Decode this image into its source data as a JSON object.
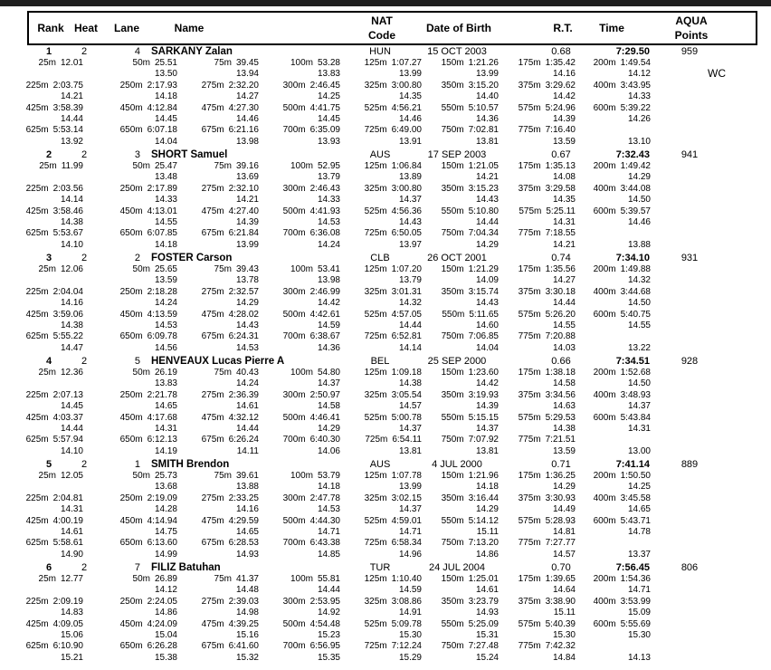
{
  "table_header": {
    "rank": "Rank",
    "heat": "Heat",
    "lane": "Lane",
    "name": "Name",
    "nat_line1": "NAT",
    "nat_line2": "Code",
    "dob": "Date of Birth",
    "rt": "R.T.",
    "time": "Time",
    "points_line1": "AQUA",
    "points_line2": "Points"
  },
  "colors": {
    "top_bar": "#1f1f1f",
    "text": "#000000",
    "background": "#ffffff"
  },
  "swimmers": [
    {
      "rank": "1",
      "heat": "2",
      "lane": "4",
      "name": "SARKANY Zalan",
      "nat": "HUN",
      "dob": "15 OCT 2003",
      "rt": "0.68",
      "time": "7:29.50",
      "points": "959",
      "note": "WC",
      "split_rows": [
        [
          [
            "25m",
            "12.01",
            ""
          ],
          [
            "50m",
            "25.51",
            "13.50"
          ],
          [
            "75m",
            "39.45",
            "13.94"
          ],
          [
            "100m",
            "53.28",
            "13.83"
          ],
          [
            "125m",
            "1:07.27",
            "13.99"
          ],
          [
            "150m",
            "1:21.26",
            "13.99"
          ],
          [
            "175m",
            "1:35.42",
            "14.16"
          ],
          [
            "200m",
            "1:49.54",
            "14.12"
          ]
        ],
        [
          [
            "225m",
            "2:03.75",
            "14.21"
          ],
          [
            "250m",
            "2:17.93",
            "14.18"
          ],
          [
            "275m",
            "2:32.20",
            "14.27"
          ],
          [
            "300m",
            "2:46.45",
            "14.25"
          ],
          [
            "325m",
            "3:00.80",
            "14.35"
          ],
          [
            "350m",
            "3:15.20",
            "14.40"
          ],
          [
            "375m",
            "3:29.62",
            "14.42"
          ],
          [
            "400m",
            "3:43.95",
            "14.33"
          ]
        ],
        [
          [
            "425m",
            "3:58.39",
            "14.44"
          ],
          [
            "450m",
            "4:12.84",
            "14.45"
          ],
          [
            "475m",
            "4:27.30",
            "14.46"
          ],
          [
            "500m",
            "4:41.75",
            "14.45"
          ],
          [
            "525m",
            "4:56.21",
            "14.46"
          ],
          [
            "550m",
            "5:10.57",
            "14.36"
          ],
          [
            "575m",
            "5:24.96",
            "14.39"
          ],
          [
            "600m",
            "5:39.22",
            "14.26"
          ]
        ],
        [
          [
            "625m",
            "5:53.14",
            "13.92"
          ],
          [
            "650m",
            "6:07.18",
            "14.04"
          ],
          [
            "675m",
            "6:21.16",
            "13.98"
          ],
          [
            "700m",
            "6:35.09",
            "13.93"
          ],
          [
            "725m",
            "6:49.00",
            "13.91"
          ],
          [
            "750m",
            "7:02.81",
            "13.81"
          ],
          [
            "775m",
            "7:16.40",
            "13.59"
          ],
          [
            "",
            "",
            "13.10"
          ]
        ]
      ]
    },
    {
      "rank": "2",
      "heat": "2",
      "lane": "3",
      "name": "SHORT Samuel",
      "nat": "AUS",
      "dob": "17 SEP 2003",
      "rt": "0.67",
      "time": "7:32.43",
      "points": "941",
      "note": "",
      "split_rows": [
        [
          [
            "25m",
            "11.99",
            ""
          ],
          [
            "50m",
            "25.47",
            "13.48"
          ],
          [
            "75m",
            "39.16",
            "13.69"
          ],
          [
            "100m",
            "52.95",
            "13.79"
          ],
          [
            "125m",
            "1:06.84",
            "13.89"
          ],
          [
            "150m",
            "1:21.05",
            "14.21"
          ],
          [
            "175m",
            "1:35.13",
            "14.08"
          ],
          [
            "200m",
            "1:49.42",
            "14.29"
          ]
        ],
        [
          [
            "225m",
            "2:03.56",
            "14.14"
          ],
          [
            "250m",
            "2:17.89",
            "14.33"
          ],
          [
            "275m",
            "2:32.10",
            "14.21"
          ],
          [
            "300m",
            "2:46.43",
            "14.33"
          ],
          [
            "325m",
            "3:00.80",
            "14.37"
          ],
          [
            "350m",
            "3:15.23",
            "14.43"
          ],
          [
            "375m",
            "3:29.58",
            "14.35"
          ],
          [
            "400m",
            "3:44.08",
            "14.50"
          ]
        ],
        [
          [
            "425m",
            "3:58.46",
            "14.38"
          ],
          [
            "450m",
            "4:13.01",
            "14.55"
          ],
          [
            "475m",
            "4:27.40",
            "14.39"
          ],
          [
            "500m",
            "4:41.93",
            "14.53"
          ],
          [
            "525m",
            "4:56.36",
            "14.43"
          ],
          [
            "550m",
            "5:10.80",
            "14.44"
          ],
          [
            "575m",
            "5:25.11",
            "14.31"
          ],
          [
            "600m",
            "5:39.57",
            "14.46"
          ]
        ],
        [
          [
            "625m",
            "5:53.67",
            "14.10"
          ],
          [
            "650m",
            "6:07.85",
            "14.18"
          ],
          [
            "675m",
            "6:21.84",
            "13.99"
          ],
          [
            "700m",
            "6:36.08",
            "14.24"
          ],
          [
            "725m",
            "6:50.05",
            "13.97"
          ],
          [
            "750m",
            "7:04.34",
            "14.29"
          ],
          [
            "775m",
            "7:18.55",
            "14.21"
          ],
          [
            "",
            "",
            "13.88"
          ]
        ]
      ]
    },
    {
      "rank": "3",
      "heat": "2",
      "lane": "2",
      "name": "FOSTER Carson",
      "nat": "CLB",
      "dob": "26 OCT 2001",
      "rt": "0.74",
      "time": "7:34.10",
      "points": "931",
      "note": "",
      "split_rows": [
        [
          [
            "25m",
            "12.06",
            ""
          ],
          [
            "50m",
            "25.65",
            "13.59"
          ],
          [
            "75m",
            "39.43",
            "13.78"
          ],
          [
            "100m",
            "53.41",
            "13.98"
          ],
          [
            "125m",
            "1:07.20",
            "13.79"
          ],
          [
            "150m",
            "1:21.29",
            "14.09"
          ],
          [
            "175m",
            "1:35.56",
            "14.27"
          ],
          [
            "200m",
            "1:49.88",
            "14.32"
          ]
        ],
        [
          [
            "225m",
            "2:04.04",
            "14.16"
          ],
          [
            "250m",
            "2:18.28",
            "14.24"
          ],
          [
            "275m",
            "2:32.57",
            "14.29"
          ],
          [
            "300m",
            "2:46.99",
            "14.42"
          ],
          [
            "325m",
            "3:01.31",
            "14.32"
          ],
          [
            "350m",
            "3:15.74",
            "14.43"
          ],
          [
            "375m",
            "3:30.18",
            "14.44"
          ],
          [
            "400m",
            "3:44.68",
            "14.50"
          ]
        ],
        [
          [
            "425m",
            "3:59.06",
            "14.38"
          ],
          [
            "450m",
            "4:13.59",
            "14.53"
          ],
          [
            "475m",
            "4:28.02",
            "14.43"
          ],
          [
            "500m",
            "4:42.61",
            "14.59"
          ],
          [
            "525m",
            "4:57.05",
            "14.44"
          ],
          [
            "550m",
            "5:11.65",
            "14.60"
          ],
          [
            "575m",
            "5:26.20",
            "14.55"
          ],
          [
            "600m",
            "5:40.75",
            "14.55"
          ]
        ],
        [
          [
            "625m",
            "5:55.22",
            "14.47"
          ],
          [
            "650m",
            "6:09.78",
            "14.56"
          ],
          [
            "675m",
            "6:24.31",
            "14.53"
          ],
          [
            "700m",
            "6:38.67",
            "14.36"
          ],
          [
            "725m",
            "6:52.81",
            "14.14"
          ],
          [
            "750m",
            "7:06.85",
            "14.04"
          ],
          [
            "775m",
            "7:20.88",
            "14.03"
          ],
          [
            "",
            "",
            "13.22"
          ]
        ]
      ]
    },
    {
      "rank": "4",
      "heat": "2",
      "lane": "5",
      "name": "HENVEAUX Lucas Pierre A",
      "nat": "BEL",
      "dob": "25 SEP 2000",
      "rt": "0.66",
      "time": "7:34.51",
      "points": "928",
      "note": "",
      "split_rows": [
        [
          [
            "25m",
            "12.36",
            ""
          ],
          [
            "50m",
            "26.19",
            "13.83"
          ],
          [
            "75m",
            "40.43",
            "14.24"
          ],
          [
            "100m",
            "54.80",
            "14.37"
          ],
          [
            "125m",
            "1:09.18",
            "14.38"
          ],
          [
            "150m",
            "1:23.60",
            "14.42"
          ],
          [
            "175m",
            "1:38.18",
            "14.58"
          ],
          [
            "200m",
            "1:52.68",
            "14.50"
          ]
        ],
        [
          [
            "225m",
            "2:07.13",
            "14.45"
          ],
          [
            "250m",
            "2:21.78",
            "14.65"
          ],
          [
            "275m",
            "2:36.39",
            "14.61"
          ],
          [
            "300m",
            "2:50.97",
            "14.58"
          ],
          [
            "325m",
            "3:05.54",
            "14.57"
          ],
          [
            "350m",
            "3:19.93",
            "14.39"
          ],
          [
            "375m",
            "3:34.56",
            "14.63"
          ],
          [
            "400m",
            "3:48.93",
            "14.37"
          ]
        ],
        [
          [
            "425m",
            "4:03.37",
            "14.44"
          ],
          [
            "450m",
            "4:17.68",
            "14.31"
          ],
          [
            "475m",
            "4:32.12",
            "14.44"
          ],
          [
            "500m",
            "4:46.41",
            "14.29"
          ],
          [
            "525m",
            "5:00.78",
            "14.37"
          ],
          [
            "550m",
            "5:15.15",
            "14.37"
          ],
          [
            "575m",
            "5:29.53",
            "14.38"
          ],
          [
            "600m",
            "5:43.84",
            "14.31"
          ]
        ],
        [
          [
            "625m",
            "5:57.94",
            "14.10"
          ],
          [
            "650m",
            "6:12.13",
            "14.19"
          ],
          [
            "675m",
            "6:26.24",
            "14.11"
          ],
          [
            "700m",
            "6:40.30",
            "14.06"
          ],
          [
            "725m",
            "6:54.11",
            "13.81"
          ],
          [
            "750m",
            "7:07.92",
            "13.81"
          ],
          [
            "775m",
            "7:21.51",
            "13.59"
          ],
          [
            "",
            "",
            "13.00"
          ]
        ]
      ]
    },
    {
      "rank": "5",
      "heat": "2",
      "lane": "1",
      "name": "SMITH Brendon",
      "nat": "AUS",
      "dob": "4 JUL 2000",
      "rt": "0.71",
      "time": "7:41.14",
      "points": "889",
      "note": "",
      "split_rows": [
        [
          [
            "25m",
            "12.05",
            ""
          ],
          [
            "50m",
            "25.73",
            "13.68"
          ],
          [
            "75m",
            "39.61",
            "13.88"
          ],
          [
            "100m",
            "53.79",
            "14.18"
          ],
          [
            "125m",
            "1:07.78",
            "13.99"
          ],
          [
            "150m",
            "1:21.96",
            "14.18"
          ],
          [
            "175m",
            "1:36.25",
            "14.29"
          ],
          [
            "200m",
            "1:50.50",
            "14.25"
          ]
        ],
        [
          [
            "225m",
            "2:04.81",
            "14.31"
          ],
          [
            "250m",
            "2:19.09",
            "14.28"
          ],
          [
            "275m",
            "2:33.25",
            "14.16"
          ],
          [
            "300m",
            "2:47.78",
            "14.53"
          ],
          [
            "325m",
            "3:02.15",
            "14.37"
          ],
          [
            "350m",
            "3:16.44",
            "14.29"
          ],
          [
            "375m",
            "3:30.93",
            "14.49"
          ],
          [
            "400m",
            "3:45.58",
            "14.65"
          ]
        ],
        [
          [
            "425m",
            "4:00.19",
            "14.61"
          ],
          [
            "450m",
            "4:14.94",
            "14.75"
          ],
          [
            "475m",
            "4:29.59",
            "14.65"
          ],
          [
            "500m",
            "4:44.30",
            "14.71"
          ],
          [
            "525m",
            "4:59.01",
            "14.71"
          ],
          [
            "550m",
            "5:14.12",
            "15.11"
          ],
          [
            "575m",
            "5:28.93",
            "14.81"
          ],
          [
            "600m",
            "5:43.71",
            "14.78"
          ]
        ],
        [
          [
            "625m",
            "5:58.61",
            "14.90"
          ],
          [
            "650m",
            "6:13.60",
            "14.99"
          ],
          [
            "675m",
            "6:28.53",
            "14.93"
          ],
          [
            "700m",
            "6:43.38",
            "14.85"
          ],
          [
            "725m",
            "6:58.34",
            "14.96"
          ],
          [
            "750m",
            "7:13.20",
            "14.86"
          ],
          [
            "775m",
            "7:27.77",
            "14.57"
          ],
          [
            "",
            "",
            "13.37"
          ]
        ]
      ]
    },
    {
      "rank": "6",
      "heat": "2",
      "lane": "7",
      "name": "FILIZ Batuhan",
      "nat": "TUR",
      "dob": "24 JUL 2004",
      "rt": "0.70",
      "time": "7:56.45",
      "points": "806",
      "note": "",
      "split_rows": [
        [
          [
            "25m",
            "12.77",
            ""
          ],
          [
            "50m",
            "26.89",
            "14.12"
          ],
          [
            "75m",
            "41.37",
            "14.48"
          ],
          [
            "100m",
            "55.81",
            "14.44"
          ],
          [
            "125m",
            "1:10.40",
            "14.59"
          ],
          [
            "150m",
            "1:25.01",
            "14.61"
          ],
          [
            "175m",
            "1:39.65",
            "14.64"
          ],
          [
            "200m",
            "1:54.36",
            "14.71"
          ]
        ],
        [
          [
            "225m",
            "2:09.19",
            "14.83"
          ],
          [
            "250m",
            "2:24.05",
            "14.86"
          ],
          [
            "275m",
            "2:39.03",
            "14.98"
          ],
          [
            "300m",
            "2:53.95",
            "14.92"
          ],
          [
            "325m",
            "3:08.86",
            "14.91"
          ],
          [
            "350m",
            "3:23.79",
            "14.93"
          ],
          [
            "375m",
            "3:38.90",
            "15.11"
          ],
          [
            "400m",
            "3:53.99",
            "15.09"
          ]
        ],
        [
          [
            "425m",
            "4:09.05",
            "15.06"
          ],
          [
            "450m",
            "4:24.09",
            "15.04"
          ],
          [
            "475m",
            "4:39.25",
            "15.16"
          ],
          [
            "500m",
            "4:54.48",
            "15.23"
          ],
          [
            "525m",
            "5:09.78",
            "15.30"
          ],
          [
            "550m",
            "5:25.09",
            "15.31"
          ],
          [
            "575m",
            "5:40.39",
            "15.30"
          ],
          [
            "600m",
            "5:55.69",
            "15.30"
          ]
        ],
        [
          [
            "625m",
            "6:10.90",
            "15.21"
          ],
          [
            "650m",
            "6:26.28",
            "15.38"
          ],
          [
            "675m",
            "6:41.60",
            "15.32"
          ],
          [
            "700m",
            "6:56.95",
            "15.35"
          ],
          [
            "725m",
            "7:12.24",
            "15.29"
          ],
          [
            "750m",
            "7:27.48",
            "15.24"
          ],
          [
            "775m",
            "7:42.32",
            "14.84"
          ],
          [
            "",
            "",
            "14.13"
          ]
        ]
      ]
    }
  ]
}
